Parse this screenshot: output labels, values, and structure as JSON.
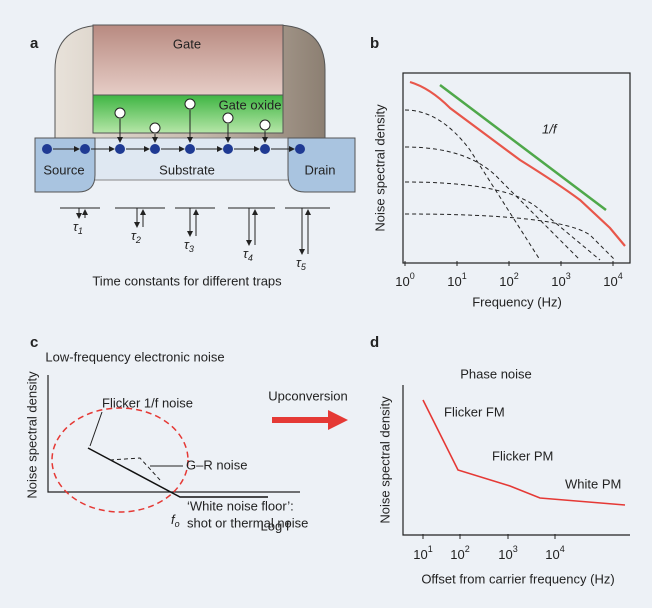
{
  "panels": {
    "a": {
      "label": "a",
      "gate": "Gate",
      "gate_oxide": "Gate oxide",
      "source": "Source",
      "substrate": "Substrate",
      "drain": "Drain",
      "taus": [
        {
          "symbol": "τ",
          "sub": "1"
        },
        {
          "symbol": "τ",
          "sub": "2"
        },
        {
          "symbol": "τ",
          "sub": "3"
        },
        {
          "symbol": "τ",
          "sub": "4"
        },
        {
          "symbol": "τ",
          "sub": "5"
        }
      ],
      "caption": "Time constants for different traps"
    },
    "b": {
      "label": "b",
      "y_label": "Noise spectral density",
      "x_label": "Frequency (Hz)",
      "annotation": "1/f",
      "xticks": [
        {
          "base": "10",
          "exp": "0"
        },
        {
          "base": "10",
          "exp": "1"
        },
        {
          "base": "10",
          "exp": "2"
        },
        {
          "base": "10",
          "exp": "3"
        },
        {
          "base": "10",
          "exp": "4"
        }
      ]
    },
    "c": {
      "label": "c",
      "title": "Low-frequency electronic noise",
      "y_label": "Noise spectral density",
      "x_label": "Log f",
      "flicker": "Flicker 1/f noise",
      "gr": "G–R noise",
      "floor_1": "‘White noise floor’:",
      "floor_2": "shot or thermal noise",
      "corner": {
        "symbol": "f",
        "sub": "o"
      },
      "arrow_label": "Upconversion"
    },
    "d": {
      "label": "d",
      "title": "Phase noise",
      "y_label": "Noise spectral density",
      "x_label": "Offset from carrier frequency (Hz)",
      "flicker_fm": "Flicker FM",
      "flicker_pm": "Flicker PM",
      "white_pm": "White PM",
      "xticks": [
        {
          "base": "10",
          "exp": "1"
        },
        {
          "base": "10",
          "exp": "2"
        },
        {
          "base": "10",
          "exp": "3"
        },
        {
          "base": "10",
          "exp": "4"
        }
      ]
    }
  }
}
